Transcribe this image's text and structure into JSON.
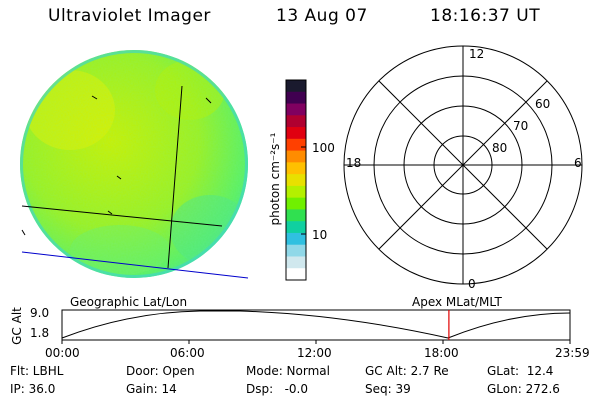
{
  "header": {
    "instrument": "Ultraviolet Imager",
    "date": "13 Aug 07",
    "time": "18:16:37 UT"
  },
  "colorbar": {
    "unit_label": "photon cm⁻²s⁻¹",
    "ticks": [
      "100",
      "10"
    ],
    "colors": [
      "#1a1a2e",
      "#400050",
      "#800060",
      "#b00030",
      "#e00010",
      "#ff4000",
      "#ff8c00",
      "#ffc000",
      "#e8e000",
      "#b4f000",
      "#70f000",
      "#30e050",
      "#10d0a0",
      "#30c0e0",
      "#90d8e8",
      "#d0e8ee",
      "#ffffff"
    ]
  },
  "polar": {
    "mlt_labels": {
      "top": "12",
      "left": "18",
      "right": "6",
      "bottom": "0"
    },
    "lat_labels": [
      "60",
      "70",
      "80"
    ]
  },
  "orbit": {
    "left_label": "Geographic Lat/Lon",
    "right_label": "Apex MLat/MLT",
    "axis_label": "GC Alt",
    "y_ticks": [
      "9.0",
      "1.8"
    ],
    "time_ticks": [
      "00:00",
      "06:00",
      "12:00",
      "18:00",
      "23:59"
    ],
    "marker_fraction": 0.7617
  },
  "status": {
    "flt": "Flt: LBHL",
    "ip": "IP: 36.0",
    "door": "Door: Open",
    "gain": "Gain: 14",
    "mode": "Mode: Normal",
    "dsp": "Dsp:   -0.0",
    "gcalt": "GC Alt: 2.7 Re",
    "seq": "Seq: 39",
    "glat": "GLat:  12.4",
    "glon": "GLon: 272.6"
  }
}
